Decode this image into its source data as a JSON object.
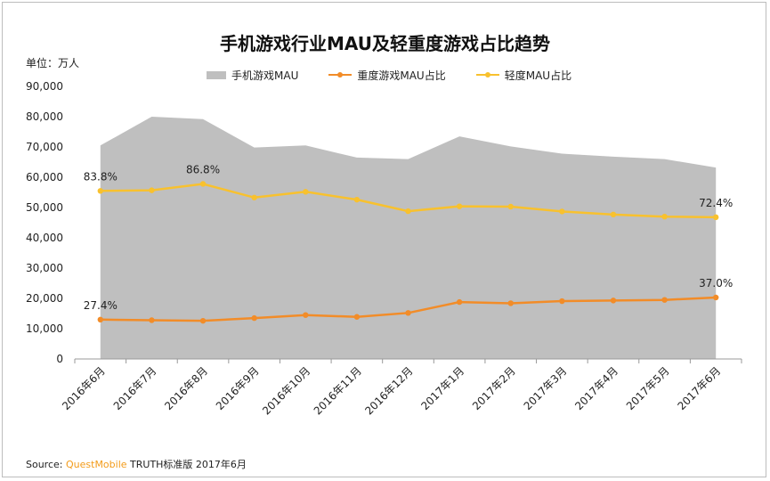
{
  "title": "手机游戏行业MAU及轻重度游戏占比趋势",
  "unit_label": "单位：万人",
  "legend": {
    "area_label": "手机游戏MAU",
    "heavy_label": "重度游戏MAU占比",
    "light_label": "轻度MAU占比"
  },
  "source": {
    "prefix": "Source:",
    "brand": "QuestMobile",
    "rest": "TRUTH标准版 2017年6月"
  },
  "colors": {
    "area": "#bfbfbf",
    "heavy": "#f28c28",
    "light": "#f8c12e",
    "axis": "#999999"
  },
  "chart_data": {
    "type": "area",
    "categories": [
      "2016年6月",
      "2016年7月",
      "2016年8月",
      "2016年9月",
      "2016年10月",
      "2016年11月",
      "2016年12月",
      "2017年1月",
      "2017年2月",
      "2017年3月",
      "2017年4月",
      "2017年5月",
      "2017年6月"
    ],
    "ylim": [
      0,
      90000
    ],
    "yticks": [
      "0",
      "10,000",
      "20,000",
      "30,000",
      "40,000",
      "50,000",
      "60,000",
      "70,000",
      "80,000",
      "90,000"
    ],
    "series": [
      {
        "name": "手机游戏MAU",
        "kind": "area",
        "values": [
          70500,
          80000,
          79200,
          69800,
          70500,
          66500,
          66000,
          73500,
          70200,
          67800,
          66800,
          66000,
          63200
        ]
      },
      {
        "name": "重度游戏MAU占比",
        "kind": "line",
        "values": [
          13000,
          12800,
          12600,
          13500,
          14500,
          13900,
          15200,
          18800,
          18400,
          19100,
          19300,
          19500,
          20300
        ]
      },
      {
        "name": "轻度MAU占比",
        "kind": "line",
        "values": [
          55500,
          55700,
          57800,
          53300,
          55200,
          52600,
          48800,
          50400,
          50300,
          48700,
          47700,
          47000,
          46800
        ]
      }
    ],
    "annotations": [
      {
        "series": 2,
        "index": 0,
        "text": "83.8%"
      },
      {
        "series": 2,
        "index": 2,
        "text": "86.8%"
      },
      {
        "series": 2,
        "index": 12,
        "text": "72.4%"
      },
      {
        "series": 1,
        "index": 0,
        "text": "27.4%"
      },
      {
        "series": 1,
        "index": 12,
        "text": "37.0%"
      }
    ]
  }
}
